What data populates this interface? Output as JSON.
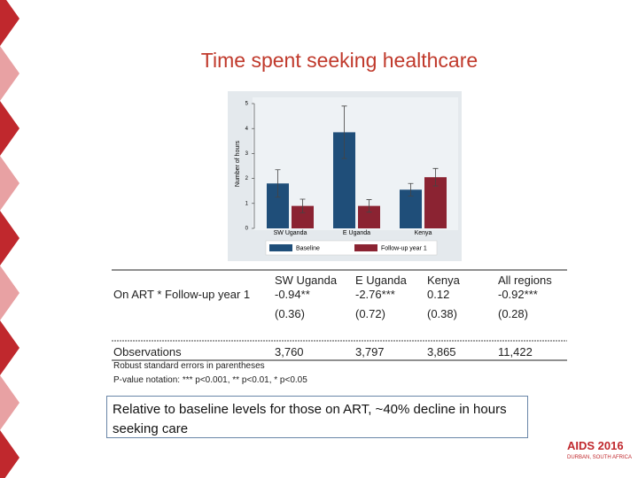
{
  "title": "Time spent seeking healthcare",
  "chart_data": {
    "type": "bar",
    "y_label": "Number of hours",
    "categories": [
      "SW Uganda",
      "E Uganda",
      "Kenya"
    ],
    "series": [
      {
        "name": "Baseline",
        "color": "#1f4e79",
        "values": [
          1.8,
          3.85,
          1.55
        ],
        "errors": [
          0.55,
          1.05,
          0.25
        ]
      },
      {
        "name": "Follow-up year 1",
        "color": "#8b2332",
        "values": [
          0.9,
          0.9,
          2.05
        ],
        "errors": [
          0.27,
          0.25,
          0.35
        ]
      }
    ],
    "ylim": [
      0,
      5
    ],
    "yticks": [
      0,
      1,
      2,
      3,
      4,
      5
    ],
    "grid": false
  },
  "table": {
    "columns": [
      "SW Uganda",
      "E Uganda",
      "Kenya",
      "All regions"
    ],
    "rows": [
      {
        "label": "On ART * Follow-up year 1",
        "cells": [
          "-0.94**",
          "-2.76***",
          "0.12",
          "-0.92***"
        ]
      },
      {
        "cells": [
          "(0.36)",
          "(0.72)",
          "(0.38)",
          "(0.28)"
        ]
      },
      {
        "label": "Observations",
        "cells": [
          "3,760",
          "3,797",
          "3,865",
          "11,422"
        ]
      }
    ]
  },
  "notes": [
    "Robust standard errors in parentheses",
    "P-value notation: *** p<0.001, ** p<0.01, * p<0.05"
  ],
  "callout": "Relative to baseline levels for those on ART, ~40% decline in hours seeking care",
  "logo": {
    "name": "AIDS 2016",
    "place": "DURBAN, SOUTH AFRICA"
  }
}
